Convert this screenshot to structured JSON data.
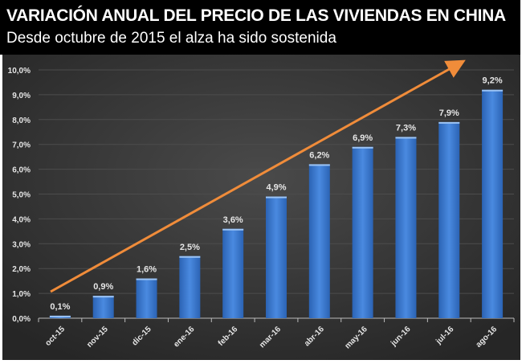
{
  "chart_data": {
    "type": "bar",
    "title": "VARIACIÓN ANUAL DEL PRECIO DE LAS VIVIENDAS EN CHINA",
    "subtitle": "Desde octubre de 2015 el alza ha sido sostenida",
    "categories": [
      "oct-15",
      "nov-15",
      "dic-15",
      "ene-16",
      "feb-16",
      "mar-16",
      "abr-16",
      "may-16",
      "jun-16",
      "jul-16",
      "ago-16"
    ],
    "values": [
      0.1,
      0.9,
      1.6,
      2.5,
      3.6,
      4.9,
      6.2,
      6.9,
      7.3,
      7.9,
      9.2
    ],
    "data_labels": [
      "0,1%",
      "0,9%",
      "1,6%",
      "2,5%",
      "3,6%",
      "4,9%",
      "6,2%",
      "6,9%",
      "7,3%",
      "7,9%",
      "9,2%"
    ],
    "yticks": [
      "0,0%",
      "1,0%",
      "2,0%",
      "3,0%",
      "4,0%",
      "5,0%",
      "6,0%",
      "7,0%",
      "8,0%",
      "9,0%",
      "10,0%"
    ],
    "ylim": [
      0,
      10
    ],
    "grid": true,
    "annotation": "orange upward trend arrow",
    "colors": {
      "bar": "#3a7bd5",
      "arrow": "#f08c3a",
      "background": "#3a3a3a",
      "header": "#000000"
    }
  }
}
